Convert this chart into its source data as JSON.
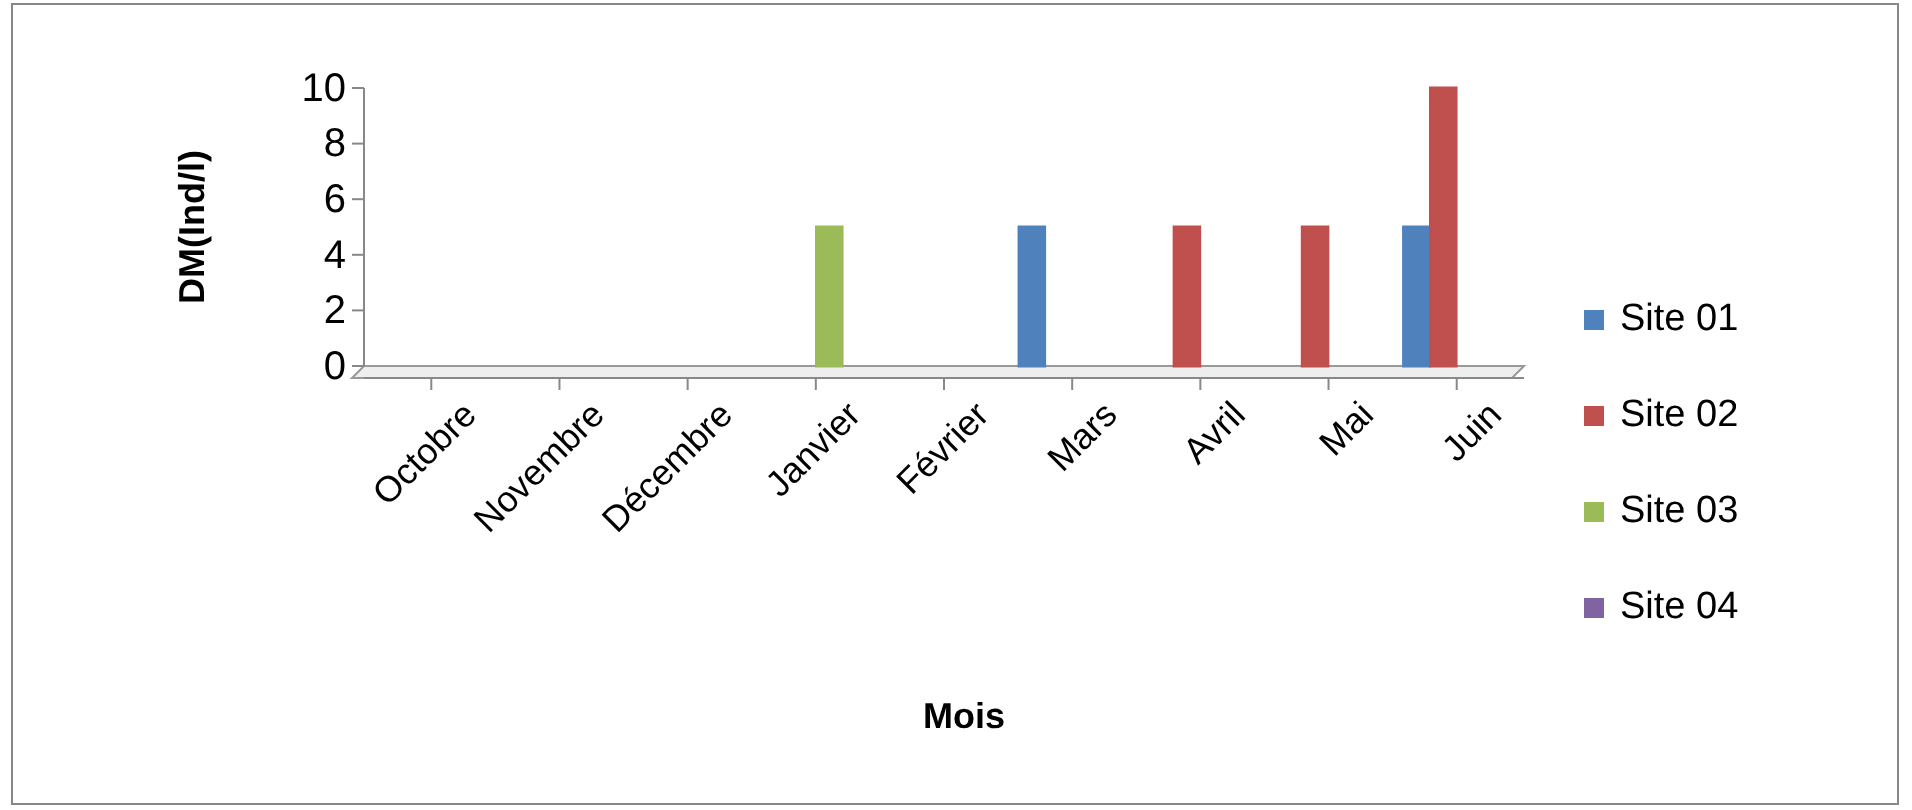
{
  "chart_data": {
    "type": "bar",
    "xlabel": "Mois",
    "ylabel": "DM(Ind/l)",
    "categories": [
      "Octobre",
      "Novembre",
      "Décembre",
      "Janvier",
      "Février",
      "Mars",
      "Avril",
      "Mai",
      "Juin"
    ],
    "series": [
      {
        "name": "Site 01",
        "color": "#4f81bd",
        "values": [
          0,
          0,
          0,
          0,
          0,
          5,
          0,
          0,
          5
        ]
      },
      {
        "name": "Site 02",
        "color": "#c0504d",
        "values": [
          0,
          0,
          0,
          0,
          0,
          0,
          5,
          5,
          10
        ]
      },
      {
        "name": "Site 03",
        "color": "#9bbb59",
        "values": [
          0,
          0,
          0,
          5,
          0,
          0,
          0,
          0,
          0
        ]
      },
      {
        "name": "Site 04",
        "color": "#8064a2",
        "values": [
          0,
          0,
          0,
          0,
          0,
          0,
          0,
          0,
          0
        ]
      }
    ],
    "ylim": [
      0,
      10
    ],
    "yticks": [
      0,
      2,
      4,
      6,
      8,
      10
    ],
    "grid": false,
    "legend": "right"
  }
}
